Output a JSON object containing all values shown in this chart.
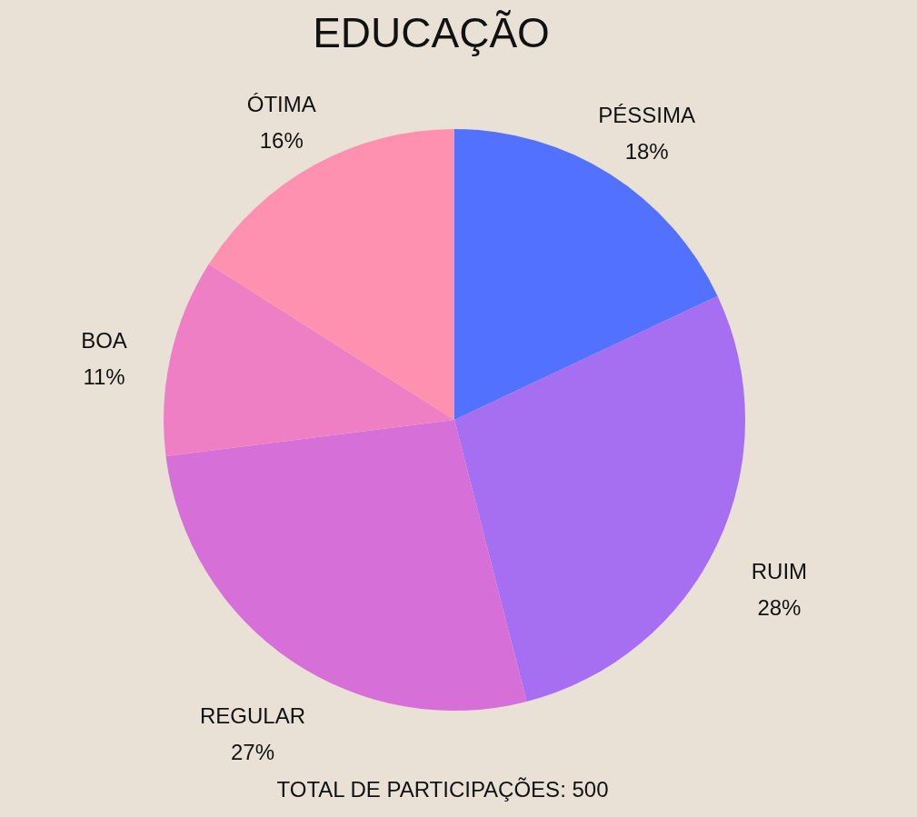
{
  "chart_data": {
    "type": "pie",
    "title": "EDUCAÇÃO",
    "categories": [
      "PÉSSIMA",
      "RUIM",
      "REGULAR",
      "BOA",
      "ÓTIMA"
    ],
    "values": [
      18,
      28,
      27,
      11,
      16
    ],
    "value_labels": [
      "18%",
      "28%",
      "27%",
      "11%",
      "16%"
    ],
    "colors": [
      "#5271ff",
      "#a66ef0",
      "#d670d8",
      "#ef7fc5",
      "#ff91b0"
    ],
    "annotations": [
      "TOTAL DE PARTICIPAÇÕES: 500"
    ],
    "legend": false
  }
}
